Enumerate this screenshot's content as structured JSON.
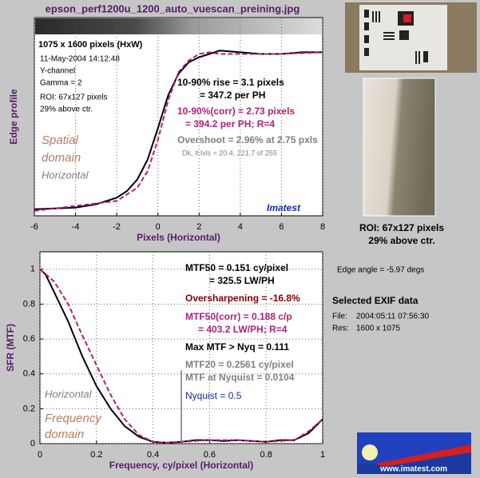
{
  "title": "epson_perf1200u_1200_auto_vuescan_preining.jpg",
  "roi_caption": [
    "ROI: 67x127 pixels",
    "29% above ctr."
  ],
  "edge_angle": "Edge angle = -5.97 degs",
  "exif": {
    "heading": "Selected EXIF data",
    "rows": [
      [
        "File:",
        "2004:05:11 07:56:30"
      ],
      [
        "Res:",
        "1600 x 1075"
      ]
    ]
  },
  "logo": "www.imatest.com",
  "chart_data": [
    {
      "type": "line",
      "ylabel": "Edge profile",
      "xlabel": "Pixels (Horizontal)",
      "xlim": [
        -6,
        8
      ],
      "xticks": [
        -6,
        -4,
        -2,
        0,
        2,
        4,
        6,
        8
      ],
      "ylim": [
        -0.05,
        1.15
      ],
      "grid": true,
      "series": [
        {
          "color": "#000000",
          "dashed": false,
          "x": [
            -6,
            -4,
            -3,
            -2,
            -1.5,
            -1,
            -0.5,
            0,
            0.5,
            1,
            1.5,
            2,
            2.5,
            3,
            4,
            5,
            6,
            7,
            8
          ],
          "values": [
            -0.01,
            0.0,
            0.02,
            0.06,
            0.1,
            0.17,
            0.29,
            0.48,
            0.68,
            0.81,
            0.88,
            0.91,
            0.93,
            0.95,
            0.94,
            0.93,
            0.93,
            0.94,
            0.94
          ]
        },
        {
          "color": "#b0207a",
          "dashed": true,
          "x": [
            -6,
            -2,
            -1,
            -0.5,
            0,
            0.5,
            1,
            1.5,
            2,
            2.5,
            3,
            4,
            6,
            8
          ],
          "values": [
            -0.02,
            0.04,
            0.12,
            0.22,
            0.41,
            0.65,
            0.82,
            0.89,
            0.93,
            0.94,
            0.93,
            0.93,
            0.93,
            0.94
          ]
        }
      ],
      "annotations": [
        "1075 x 1600 pixels (HxW)",
        "11-May-2004 14:12:48",
        "Y-channel",
        "Gamma = 2",
        "ROI: 67x127 pixels",
        "29% above ctr.",
        "10-90% rise = 3.1 pixels",
        "= 347.2 per PH",
        "10-90%(corr) = 2.73 pixels",
        "= 394.2 per PH;  R=4",
        "Overshoot = 2.96% at 2.75 pxls",
        "Dk, lt lvls = 20.4, 221.7 of 255",
        "Spatial",
        "domain",
        "Horizontal",
        "Imatest"
      ]
    },
    {
      "type": "line",
      "ylabel": "SFR (MTF)",
      "xlabel": "Frequency,  cy/pixel (Horizontal)",
      "xlim": [
        0,
        1
      ],
      "xticks": [
        0,
        0.2,
        0.4,
        0.6,
        0.8,
        1
      ],
      "ylim": [
        0,
        1.1
      ],
      "yticks": [
        0,
        0.2,
        0.4,
        0.6,
        0.8,
        1
      ],
      "grid": true,
      "nyquist": 0.5,
      "series": [
        {
          "color": "#000000",
          "dashed": false,
          "x": [
            0,
            0.02,
            0.05,
            0.1,
            0.15,
            0.2,
            0.25,
            0.3,
            0.35,
            0.4,
            0.45,
            0.5,
            0.55,
            0.6,
            0.65,
            0.7,
            0.75,
            0.8,
            0.85,
            0.9,
            0.95,
            1
          ],
          "values": [
            1,
            0.97,
            0.87,
            0.7,
            0.5,
            0.33,
            0.2,
            0.1,
            0.04,
            0.01,
            0.005,
            0.01,
            0.02,
            0.02,
            0.015,
            0.02,
            0.015,
            0.01,
            0.02,
            0.02,
            0.06,
            0.14
          ]
        },
        {
          "color": "#b0207a",
          "dashed": true,
          "x": [
            0,
            0.05,
            0.1,
            0.15,
            0.2,
            0.25,
            0.3,
            0.35,
            0.4,
            0.45,
            0.5,
            0.6,
            0.7,
            0.8,
            0.9,
            0.95,
            1
          ],
          "values": [
            1,
            0.93,
            0.8,
            0.62,
            0.45,
            0.28,
            0.14,
            0.05,
            0.01,
            0.005,
            0.01,
            0.02,
            0.02,
            0.01,
            0.02,
            0.07,
            0.14
          ]
        }
      ],
      "annotations": [
        "MTF50 = 0.151 cy/pixel",
        "= 325.5 LW/PH",
        "Oversharpening = -16.8%",
        "MTF50(corr) = 0.188 c/p",
        "= 403.2 LW/PH;  R=4",
        "Max MTF > Nyq = 0.111",
        "MTF20 = 0.2561 cy/pixel",
        "MTF at Nyquist = 0.0104",
        "Nyquist = 0.5",
        "Horizontal",
        "Frequency",
        "domain"
      ]
    }
  ]
}
